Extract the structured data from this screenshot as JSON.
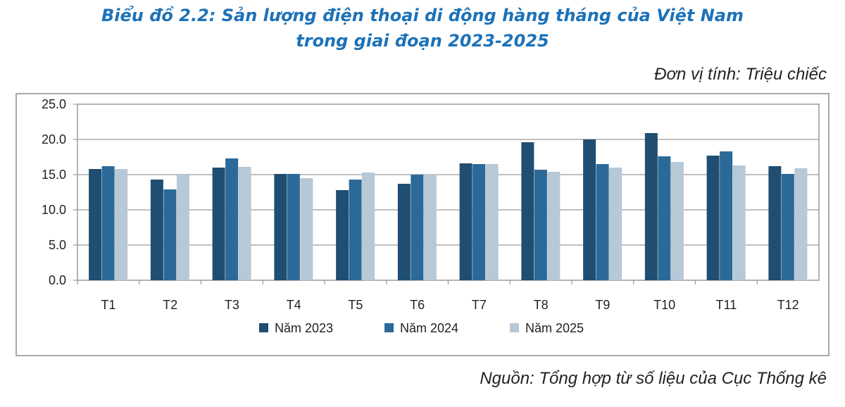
{
  "title_line1": "Biểu đồ 2.2: Sản lượng điện thoại di động hàng tháng của Việt Nam",
  "title_line2": "trong giai đoạn 2023-2025",
  "unit_text": "Đơn vị tính: Triệu chiếc",
  "source_text": "Nguồn: Tổng hợp từ số liệu của Cục Thống kê",
  "chart_data": {
    "type": "bar",
    "categories": [
      "T1",
      "T2",
      "T3",
      "T4",
      "T5",
      "T6",
      "T7",
      "T8",
      "T9",
      "T10",
      "T11",
      "T12"
    ],
    "series": [
      {
        "name": "Năm 2023",
        "color": "#1f4e72",
        "values": [
          15.8,
          14.3,
          16.0,
          15.1,
          12.8,
          13.7,
          16.6,
          19.6,
          20.0,
          20.9,
          17.7,
          16.2
        ]
      },
      {
        "name": "Năm 2024",
        "color": "#2b6a98",
        "values": [
          16.2,
          12.9,
          17.3,
          15.1,
          14.3,
          15.0,
          16.5,
          15.7,
          16.5,
          17.6,
          18.3,
          15.1
        ]
      },
      {
        "name": "Năm 2025",
        "color": "#b7c8d6",
        "values": [
          15.8,
          15.0,
          16.1,
          14.5,
          15.3,
          15.1,
          16.5,
          15.4,
          16.0,
          16.8,
          16.3,
          15.9
        ]
      }
    ],
    "yticks": [
      "0.0",
      "5.0",
      "10.0",
      "15.0",
      "20.0",
      "25.0"
    ],
    "ylim": [
      0,
      25
    ],
    "grid": true,
    "legend": "bottom"
  }
}
